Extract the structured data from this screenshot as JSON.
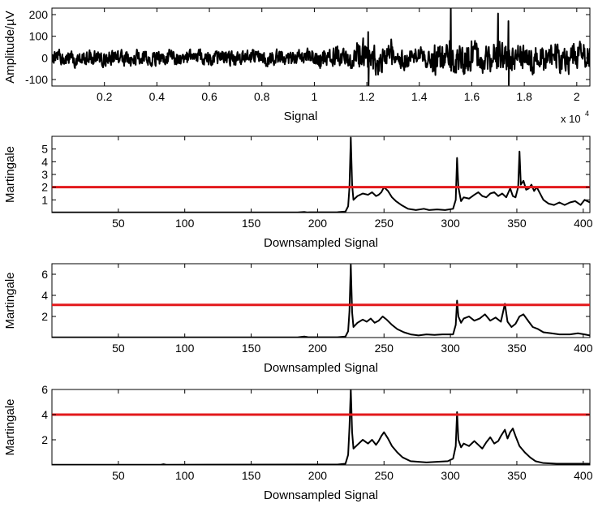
{
  "chart_data": [
    {
      "type": "line",
      "ylabel": "Amplitude/µV",
      "xlabel": "Signal",
      "x_multiplier": "x 10",
      "x_multiplier_exp": "4",
      "xlim": [
        0,
        2.05
      ],
      "ylim": [
        -130,
        230
      ],
      "xticks": [
        0.2,
        0.4,
        0.6,
        0.8,
        1,
        1.2,
        1.4,
        1.6,
        1.8,
        2
      ],
      "xtick_labels": [
        "0.2",
        "0.4",
        "0.6",
        "0.8",
        "1",
        "1.2",
        "1.4",
        "1.6",
        "1.8",
        "2"
      ],
      "yticks": [
        -100,
        0,
        100,
        200
      ],
      "ytick_labels": [
        "-100",
        "0",
        "100",
        "200"
      ],
      "grid": false,
      "series": [
        {
          "color": "#000000",
          "generated": "noise",
          "base_amplitude": 30,
          "bursts": [
            {
              "x": 1.205,
              "values": [
                120,
                -130
              ]
            },
            {
              "x": 1.52,
              "values": [
                230,
                -60
              ]
            },
            {
              "x": 1.7,
              "values": [
                205,
                -40
              ]
            },
            {
              "x": 1.74,
              "values": [
                170,
                -125
              ]
            }
          ]
        }
      ]
    },
    {
      "type": "line",
      "ylabel": "Martingale",
      "xlabel": "Downsampled Signal",
      "xlim": [
        0,
        405
      ],
      "ylim": [
        0,
        6
      ],
      "xticks": [
        50,
        100,
        150,
        200,
        250,
        300,
        350,
        400
      ],
      "xtick_labels": [
        "50",
        "100",
        "150",
        "200",
        "250",
        "300",
        "350",
        "400"
      ],
      "yticks": [
        1,
        2,
        3,
        4,
        5
      ],
      "ytick_labels": [
        "1",
        "2",
        "3",
        "4",
        "5"
      ],
      "threshold": 2,
      "threshold_color": "#e3191c",
      "series": [
        {
          "color": "#000000",
          "points": [
            [
              0,
              0.02
            ],
            [
              185,
              0.02
            ],
            [
              190,
              0.05
            ],
            [
              192,
              0.02
            ],
            [
              215,
              0.03
            ],
            [
              221,
              0.08
            ],
            [
              223,
              0.5
            ],
            [
              224,
              2.0
            ],
            [
              225,
              5.9
            ],
            [
              226,
              2.2
            ],
            [
              227,
              1.0
            ],
            [
              230,
              1.3
            ],
            [
              234,
              1.5
            ],
            [
              238,
              1.4
            ],
            [
              241,
              1.6
            ],
            [
              244,
              1.3
            ],
            [
              246,
              1.4
            ],
            [
              248,
              1.6
            ],
            [
              250,
              2.0
            ],
            [
              253,
              1.7
            ],
            [
              256,
              1.2
            ],
            [
              259,
              0.9
            ],
            [
              263,
              0.6
            ],
            [
              268,
              0.3
            ],
            [
              274,
              0.2
            ],
            [
              280,
              0.3
            ],
            [
              284,
              0.2
            ],
            [
              290,
              0.25
            ],
            [
              296,
              0.2
            ],
            [
              302,
              0.3
            ],
            [
              304,
              1.0
            ],
            [
              305,
              4.3
            ],
            [
              306,
              2.0
            ],
            [
              308,
              0.9
            ],
            [
              310,
              1.2
            ],
            [
              314,
              1.1
            ],
            [
              318,
              1.4
            ],
            [
              321,
              1.6
            ],
            [
              324,
              1.3
            ],
            [
              327,
              1.2
            ],
            [
              330,
              1.5
            ],
            [
              333,
              1.6
            ],
            [
              336,
              1.3
            ],
            [
              339,
              1.5
            ],
            [
              342,
              1.2
            ],
            [
              345,
              1.9
            ],
            [
              347,
              1.3
            ],
            [
              349,
              1.2
            ],
            [
              351,
              2.0
            ],
            [
              352,
              4.8
            ],
            [
              353,
              2.2
            ],
            [
              355,
              2.5
            ],
            [
              357,
              1.8
            ],
            [
              359,
              1.9
            ],
            [
              361,
              2.2
            ],
            [
              363,
              1.7
            ],
            [
              365,
              2.0
            ],
            [
              367,
              1.6
            ],
            [
              370,
              1.0
            ],
            [
              374,
              0.7
            ],
            [
              378,
              0.6
            ],
            [
              382,
              0.8
            ],
            [
              386,
              0.6
            ],
            [
              390,
              0.8
            ],
            [
              394,
              0.9
            ],
            [
              398,
              0.6
            ],
            [
              401,
              1.0
            ],
            [
              405,
              0.8
            ]
          ]
        }
      ]
    },
    {
      "type": "line",
      "ylabel": "Martingale",
      "xlabel": "Downsampled Signal",
      "xlim": [
        0,
        405
      ],
      "ylim": [
        0,
        7
      ],
      "xticks": [
        50,
        100,
        150,
        200,
        250,
        300,
        350,
        400
      ],
      "xtick_labels": [
        "50",
        "100",
        "150",
        "200",
        "250",
        "300",
        "350",
        "400"
      ],
      "yticks": [
        2,
        4,
        6
      ],
      "ytick_labels": [
        "2",
        "4",
        "6"
      ],
      "threshold": 3.1,
      "threshold_color": "#e3191c",
      "series": [
        {
          "color": "#000000",
          "points": [
            [
              0,
              0.02
            ],
            [
              185,
              0.02
            ],
            [
              190,
              0.1
            ],
            [
              193,
              0.03
            ],
            [
              215,
              0.03
            ],
            [
              221,
              0.1
            ],
            [
              223,
              0.6
            ],
            [
              224,
              2.5
            ],
            [
              225,
              6.9
            ],
            [
              226,
              2.4
            ],
            [
              227,
              1.0
            ],
            [
              230,
              1.4
            ],
            [
              234,
              1.7
            ],
            [
              237,
              1.5
            ],
            [
              240,
              1.8
            ],
            [
              243,
              1.4
            ],
            [
              246,
              1.6
            ],
            [
              249,
              2.0
            ],
            [
              252,
              1.7
            ],
            [
              256,
              1.2
            ],
            [
              260,
              0.8
            ],
            [
              265,
              0.5
            ],
            [
              270,
              0.3
            ],
            [
              276,
              0.2
            ],
            [
              282,
              0.3
            ],
            [
              288,
              0.25
            ],
            [
              294,
              0.3
            ],
            [
              302,
              0.3
            ],
            [
              304,
              1.2
            ],
            [
              305,
              3.5
            ],
            [
              306,
              2.0
            ],
            [
              308,
              1.4
            ],
            [
              310,
              1.8
            ],
            [
              314,
              2.0
            ],
            [
              318,
              1.6
            ],
            [
              322,
              1.8
            ],
            [
              326,
              2.2
            ],
            [
              330,
              1.6
            ],
            [
              334,
              1.9
            ],
            [
              338,
              1.5
            ],
            [
              341,
              3.2
            ],
            [
              343,
              1.5
            ],
            [
              346,
              1.0
            ],
            [
              349,
              1.3
            ],
            [
              352,
              2.0
            ],
            [
              355,
              2.2
            ],
            [
              359,
              1.5
            ],
            [
              362,
              1.0
            ],
            [
              366,
              0.8
            ],
            [
              370,
              0.5
            ],
            [
              376,
              0.4
            ],
            [
              382,
              0.3
            ],
            [
              390,
              0.3
            ],
            [
              396,
              0.4
            ],
            [
              401,
              0.3
            ],
            [
              405,
              0.2
            ]
          ]
        }
      ]
    },
    {
      "type": "line",
      "ylabel": "Martingale",
      "xlabel": "Downsampled Signal",
      "xlim": [
        0,
        405
      ],
      "ylim": [
        0,
        6
      ],
      "xticks": [
        50,
        100,
        150,
        200,
        250,
        300,
        350,
        400
      ],
      "xtick_labels": [
        "50",
        "100",
        "150",
        "200",
        "250",
        "300",
        "350",
        "400"
      ],
      "yticks": [
        2,
        4,
        6
      ],
      "ytick_labels": [
        "2",
        "4",
        "6"
      ],
      "threshold": 4,
      "threshold_color": "#e3191c",
      "series": [
        {
          "color": "#000000",
          "points": [
            [
              0,
              0.02
            ],
            [
              82,
              0.02
            ],
            [
              84,
              0.06
            ],
            [
              86,
              0.02
            ],
            [
              215,
              0.03
            ],
            [
              221,
              0.1
            ],
            [
              223,
              0.8
            ],
            [
              224,
              3.0
            ],
            [
              225,
              6.0
            ],
            [
              226,
              2.6
            ],
            [
              227,
              1.3
            ],
            [
              230,
              1.6
            ],
            [
              234,
              2.0
            ],
            [
              238,
              1.7
            ],
            [
              241,
              2.0
            ],
            [
              244,
              1.6
            ],
            [
              246,
              1.9
            ],
            [
              248,
              2.3
            ],
            [
              250,
              2.6
            ],
            [
              253,
              2.1
            ],
            [
              256,
              1.5
            ],
            [
              260,
              1.0
            ],
            [
              264,
              0.6
            ],
            [
              270,
              0.3
            ],
            [
              276,
              0.25
            ],
            [
              282,
              0.2
            ],
            [
              290,
              0.25
            ],
            [
              298,
              0.3
            ],
            [
              302,
              0.5
            ],
            [
              304,
              1.5
            ],
            [
              305,
              4.2
            ],
            [
              306,
              2.0
            ],
            [
              308,
              1.4
            ],
            [
              310,
              1.7
            ],
            [
              314,
              1.5
            ],
            [
              318,
              1.9
            ],
            [
              321,
              1.6
            ],
            [
              324,
              1.3
            ],
            [
              327,
              1.8
            ],
            [
              330,
              2.2
            ],
            [
              333,
              1.7
            ],
            [
              336,
              1.9
            ],
            [
              338,
              2.3
            ],
            [
              341,
              2.8
            ],
            [
              343,
              2.1
            ],
            [
              345,
              2.6
            ],
            [
              347,
              2.9
            ],
            [
              349,
              2.3
            ],
            [
              352,
              1.5
            ],
            [
              356,
              1.0
            ],
            [
              360,
              0.6
            ],
            [
              364,
              0.3
            ],
            [
              370,
              0.15
            ],
            [
              380,
              0.1
            ],
            [
              390,
              0.1
            ],
            [
              405,
              0.1
            ]
          ]
        }
      ]
    }
  ]
}
